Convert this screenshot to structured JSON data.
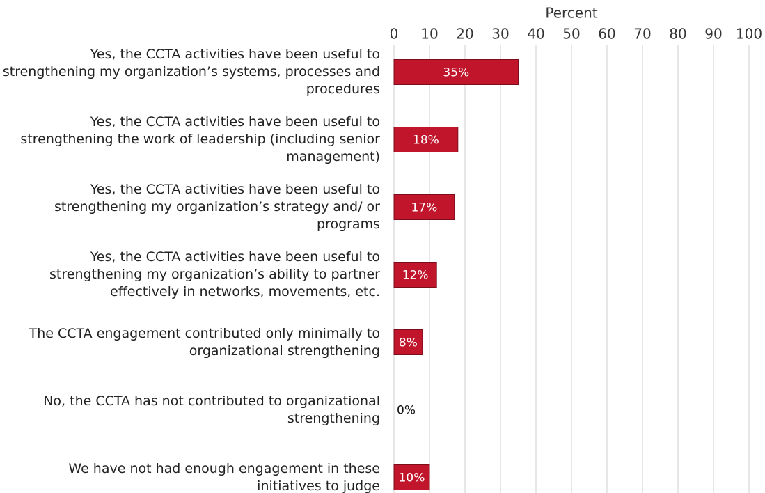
{
  "chart_data": {
    "type": "bar",
    "orientation": "horizontal",
    "x_label": "Percent",
    "categories": [
      "Yes, the CCTA activities have been useful to strengthening my organization’s systems, processes and procedures",
      "Yes, the CCTA activities have been useful to strengthening the work of leadership (including senior management)",
      "Yes, the CCTA activities have been useful to strengthening my organization’s strategy and/ or programs",
      "Yes, the CCTA activities have been useful to strengthening my organization’s ability to partner effectively in networks, movements, etc.",
      "The CCTA engagement contributed only minimally to organizational strengthening",
      "No, the CCTA has not contributed to organizational strengthening",
      "We have not had enough engagement in these initiatives to judge"
    ],
    "values": [
      35,
      18,
      17,
      12,
      8,
      0,
      10
    ],
    "value_labels": [
      "35%",
      "18%",
      "17%",
      "12%",
      "8%",
      "0%",
      "10%"
    ],
    "color": "#c0152b",
    "xlim": [
      0,
      100
    ],
    "xticks": [
      0,
      10,
      20,
      30,
      40,
      50,
      60,
      70,
      80,
      90,
      100
    ],
    "grid": true
  }
}
